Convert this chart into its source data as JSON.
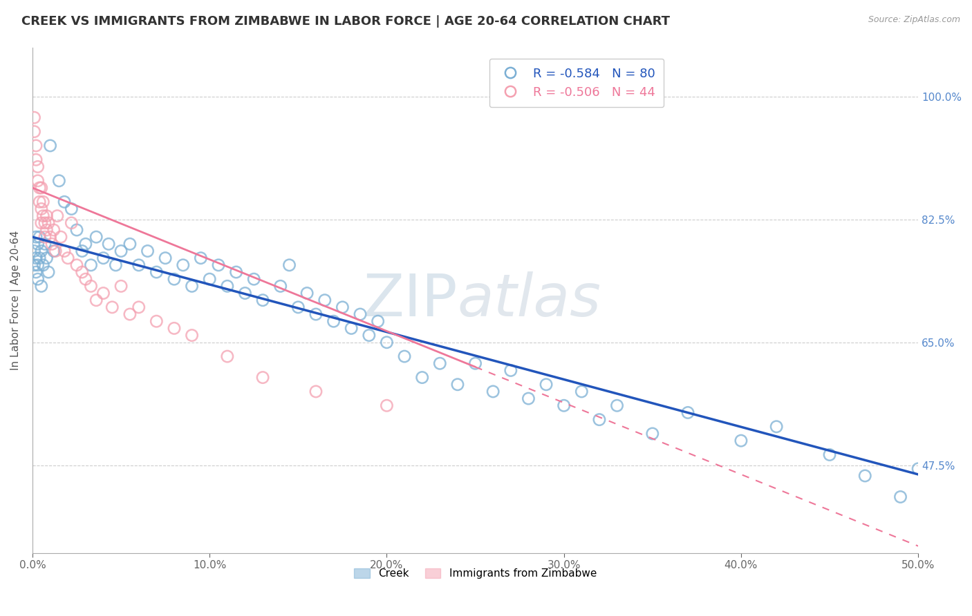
{
  "title": "CREEK VS IMMIGRANTS FROM ZIMBABWE IN LABOR FORCE | AGE 20-64 CORRELATION CHART",
  "source": "Source: ZipAtlas.com",
  "ylabel": "In Labor Force | Age 20-64",
  "x_tick_labels": [
    "0.0%",
    "10.0%",
    "20.0%",
    "30.0%",
    "40.0%",
    "50.0%"
  ],
  "x_tick_vals": [
    0.0,
    0.1,
    0.2,
    0.3,
    0.4,
    0.5
  ],
  "y_tick_labels": [
    "100.0%",
    "82.5%",
    "65.0%",
    "47.5%"
  ],
  "y_tick_vals": [
    1.0,
    0.825,
    0.65,
    0.475
  ],
  "xlim": [
    0.0,
    0.5
  ],
  "ylim": [
    0.35,
    1.07
  ],
  "blue_color": "#7BAFD4",
  "pink_color": "#F4A0B0",
  "blue_line_color": "#2255BB",
  "pink_line_color": "#EE7799",
  "legend_R_blue": "-0.584",
  "legend_N_blue": "80",
  "legend_R_pink": "-0.506",
  "legend_N_pink": "44",
  "legend_label_blue": "Creek",
  "legend_label_pink": "Immigrants from Zimbabwe",
  "watermark_zip": "ZIP",
  "watermark_atlas": "atlas",
  "bg_color": "#FFFFFF",
  "title_fontsize": 13,
  "axis_label_fontsize": 11,
  "tick_fontsize": 11,
  "right_tick_color": "#5588CC",
  "grid_color": "#CCCCCC",
  "grid_style": "--",
  "blue_scatter_x": [
    0.001,
    0.001,
    0.002,
    0.002,
    0.002,
    0.003,
    0.003,
    0.003,
    0.004,
    0.004,
    0.005,
    0.005,
    0.006,
    0.007,
    0.008,
    0.009,
    0.01,
    0.012,
    0.015,
    0.018,
    0.022,
    0.025,
    0.028,
    0.03,
    0.033,
    0.036,
    0.04,
    0.043,
    0.047,
    0.05,
    0.055,
    0.06,
    0.065,
    0.07,
    0.075,
    0.08,
    0.085,
    0.09,
    0.095,
    0.1,
    0.105,
    0.11,
    0.115,
    0.12,
    0.125,
    0.13,
    0.14,
    0.145,
    0.15,
    0.155,
    0.16,
    0.165,
    0.17,
    0.175,
    0.18,
    0.185,
    0.19,
    0.195,
    0.2,
    0.21,
    0.22,
    0.23,
    0.24,
    0.25,
    0.26,
    0.27,
    0.28,
    0.29,
    0.3,
    0.31,
    0.32,
    0.33,
    0.35,
    0.37,
    0.4,
    0.42,
    0.45,
    0.47,
    0.49,
    0.5
  ],
  "blue_scatter_y": [
    0.78,
    0.76,
    0.8,
    0.77,
    0.75,
    0.79,
    0.76,
    0.74,
    0.8,
    0.77,
    0.78,
    0.73,
    0.76,
    0.79,
    0.77,
    0.75,
    0.93,
    0.78,
    0.88,
    0.85,
    0.84,
    0.81,
    0.78,
    0.79,
    0.76,
    0.8,
    0.77,
    0.79,
    0.76,
    0.78,
    0.79,
    0.76,
    0.78,
    0.75,
    0.77,
    0.74,
    0.76,
    0.73,
    0.77,
    0.74,
    0.76,
    0.73,
    0.75,
    0.72,
    0.74,
    0.71,
    0.73,
    0.76,
    0.7,
    0.72,
    0.69,
    0.71,
    0.68,
    0.7,
    0.67,
    0.69,
    0.66,
    0.68,
    0.65,
    0.63,
    0.6,
    0.62,
    0.59,
    0.62,
    0.58,
    0.61,
    0.57,
    0.59,
    0.56,
    0.58,
    0.54,
    0.56,
    0.52,
    0.55,
    0.51,
    0.53,
    0.49,
    0.46,
    0.43,
    0.47
  ],
  "pink_scatter_x": [
    0.001,
    0.001,
    0.002,
    0.002,
    0.003,
    0.003,
    0.004,
    0.004,
    0.005,
    0.005,
    0.005,
    0.006,
    0.006,
    0.007,
    0.007,
    0.008,
    0.008,
    0.009,
    0.01,
    0.011,
    0.012,
    0.013,
    0.014,
    0.016,
    0.018,
    0.02,
    0.022,
    0.025,
    0.028,
    0.03,
    0.033,
    0.036,
    0.04,
    0.045,
    0.05,
    0.055,
    0.06,
    0.07,
    0.08,
    0.09,
    0.11,
    0.13,
    0.16,
    0.2
  ],
  "pink_scatter_y": [
    0.97,
    0.95,
    0.93,
    0.91,
    0.9,
    0.88,
    0.87,
    0.85,
    0.87,
    0.84,
    0.82,
    0.85,
    0.83,
    0.82,
    0.8,
    0.83,
    0.81,
    0.82,
    0.8,
    0.79,
    0.81,
    0.78,
    0.83,
    0.8,
    0.78,
    0.77,
    0.82,
    0.76,
    0.75,
    0.74,
    0.73,
    0.71,
    0.72,
    0.7,
    0.73,
    0.69,
    0.7,
    0.68,
    0.67,
    0.66,
    0.63,
    0.6,
    0.58,
    0.56
  ],
  "blue_line_x": [
    0.0,
    0.5
  ],
  "blue_line_y": [
    0.8,
    0.462
  ],
  "pink_line_x": [
    0.0,
    0.5
  ],
  "pink_line_y": [
    0.87,
    0.36
  ],
  "pink_line_solid_end": 0.25,
  "pink_line_dash_start": 0.25
}
